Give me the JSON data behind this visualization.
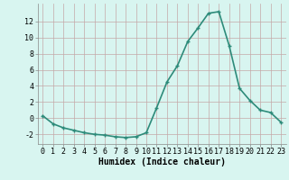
{
  "x": [
    0,
    1,
    2,
    3,
    4,
    5,
    6,
    7,
    8,
    9,
    10,
    11,
    12,
    13,
    14,
    15,
    16,
    17,
    18,
    19,
    20,
    21,
    22,
    23
  ],
  "y": [
    0.3,
    -0.7,
    -1.2,
    -1.5,
    -1.8,
    -2.0,
    -2.1,
    -2.3,
    -2.4,
    -2.3,
    -1.8,
    1.3,
    4.5,
    6.5,
    9.5,
    11.2,
    13.0,
    13.2,
    9.0,
    3.7,
    2.2,
    1.0,
    0.7,
    -0.5
  ],
  "line_color": "#2d8b7a",
  "marker": "+",
  "marker_size": 3,
  "background_color": "#d8f5f0",
  "grid_color_major": "#c4a8a8",
  "grid_color_minor": "#c4a8a8",
  "xlabel": "Humidex (Indice chaleur)",
  "xlabel_fontsize": 7,
  "yticks": [
    -2,
    0,
    2,
    4,
    6,
    8,
    10,
    12
  ],
  "xticks": [
    0,
    1,
    2,
    3,
    4,
    5,
    6,
    7,
    8,
    9,
    10,
    11,
    12,
    13,
    14,
    15,
    16,
    17,
    18,
    19,
    20,
    21,
    22,
    23
  ],
  "xlim": [
    -0.5,
    23.5
  ],
  "ylim": [
    -3.2,
    14.2
  ],
  "tick_fontsize": 6,
  "linewidth": 1.2,
  "spine_color": "#888888"
}
